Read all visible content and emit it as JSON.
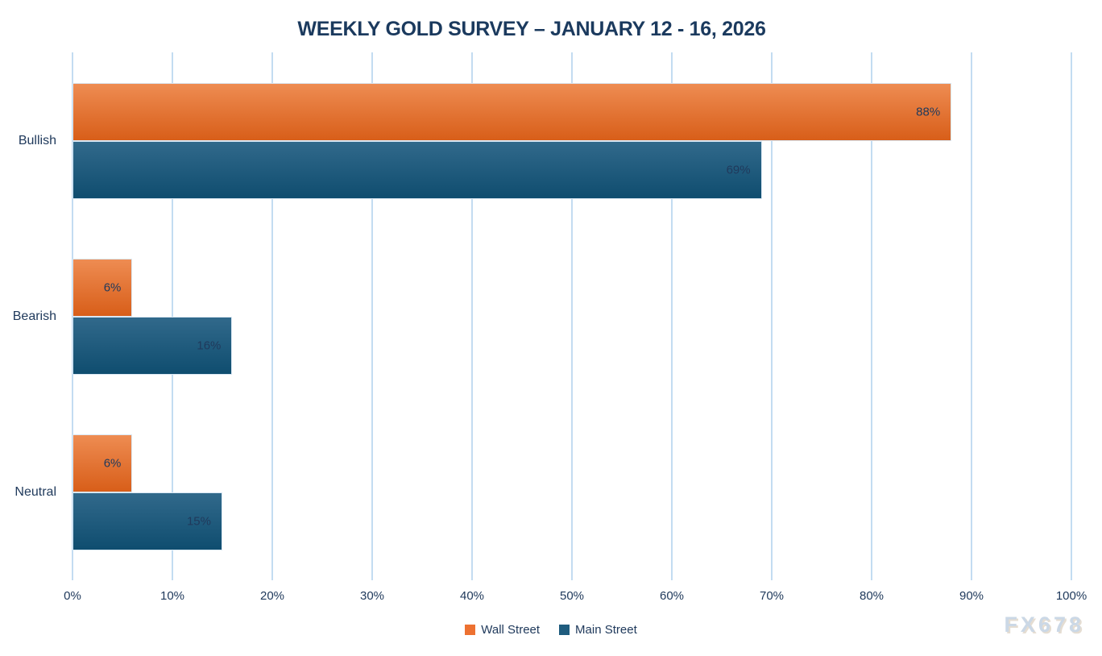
{
  "page": {
    "background": "#FFFFFF"
  },
  "chart_data": {
    "type": "bar",
    "orientation": "horizontal",
    "title": "WEEKLY GOLD SURVEY – JANUARY 12 - 16, 2026",
    "categories": [
      "Bullish",
      "Bearish",
      "Neutral"
    ],
    "series": [
      {
        "name": "Wall Street",
        "values": [
          88,
          6,
          6
        ],
        "color": "#ED7131",
        "gradient_top": "#EE8C52",
        "gradient_bottom": "#D85E19"
      },
      {
        "name": "Main Street",
        "values": [
          69,
          16,
          15
        ],
        "color": "#1F5C7E",
        "gradient_top": "#31698B",
        "gradient_bottom": "#0F4D6F"
      }
    ],
    "value_suffix": "%",
    "x_ticks": [
      "0%",
      "10%",
      "20%",
      "30%",
      "40%",
      "50%",
      "60%",
      "70%",
      "80%",
      "90%",
      "100%"
    ],
    "xlim": [
      0,
      100
    ],
    "grid": true,
    "gridline_color": "#C3DCF1",
    "legend_position": "bottom",
    "text_color": "#203A5C",
    "title_color": "#1B3A5E",
    "watermark": "FX678"
  }
}
